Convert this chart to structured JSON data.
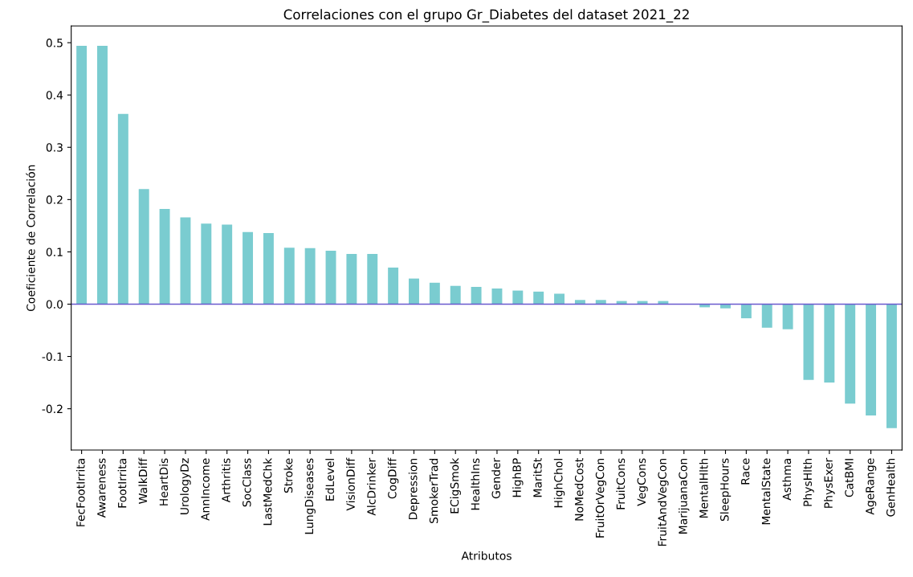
{
  "chart_data": {
    "type": "bar",
    "title": "Correlaciones con el grupo Gr_Diabetes del dataset 2021_22",
    "xlabel": "Atributos",
    "ylabel": "Coeficiente de Correlación",
    "categories": [
      "FecFootIrrita",
      "Awareness",
      "FootIrrita",
      "WalkDiff",
      "HeartDis",
      "UrologyDz",
      "AnnIncome",
      "Arthritis",
      "SocClass",
      "LastMedChk",
      "Stroke",
      "LungDiseases",
      "EdLevel",
      "VisionDiff",
      "AlcDrinker",
      "CogDiff",
      "Depression",
      "SmokerTrad",
      "ECigSmok",
      "HealthIns",
      "Gender",
      "HighBP",
      "MaritSt",
      "HighChol",
      "NoMedCost",
      "FruitOrVegCon",
      "FruitCons",
      "VegCons",
      "FruitAndVegCon",
      "MarijuanaCon",
      "MentalHlth",
      "SleepHours",
      "Race",
      "MentalState",
      "Asthma",
      "PhysHlth",
      "PhysExer",
      "CatBMI",
      "AgeRange",
      "GenHealth"
    ],
    "values": [
      0.494,
      0.494,
      0.364,
      0.22,
      0.182,
      0.166,
      0.154,
      0.152,
      0.138,
      0.136,
      0.108,
      0.107,
      0.102,
      0.096,
      0.096,
      0.07,
      0.049,
      0.041,
      0.035,
      0.033,
      0.03,
      0.026,
      0.024,
      0.02,
      0.008,
      0.008,
      0.006,
      0.006,
      0.006,
      0,
      -0.006,
      -0.008,
      -0.027,
      -0.045,
      -0.048,
      -0.145,
      -0.15,
      -0.19,
      -0.213,
      -0.237
    ],
    "color": "#7accd0",
    "ylim": [
      -0.279,
      0.532
    ],
    "yticks": [
      -0.2,
      -0.1,
      {
        "value": 0,
        "label": "0.0"
      },
      0.1,
      0.2,
      0.3,
      0.4,
      0.5
    ],
    "ref_lines": [
      {
        "axis": "y",
        "value": 0,
        "color": "#6a5acd"
      }
    ],
    "grid": false,
    "legend": false
  }
}
